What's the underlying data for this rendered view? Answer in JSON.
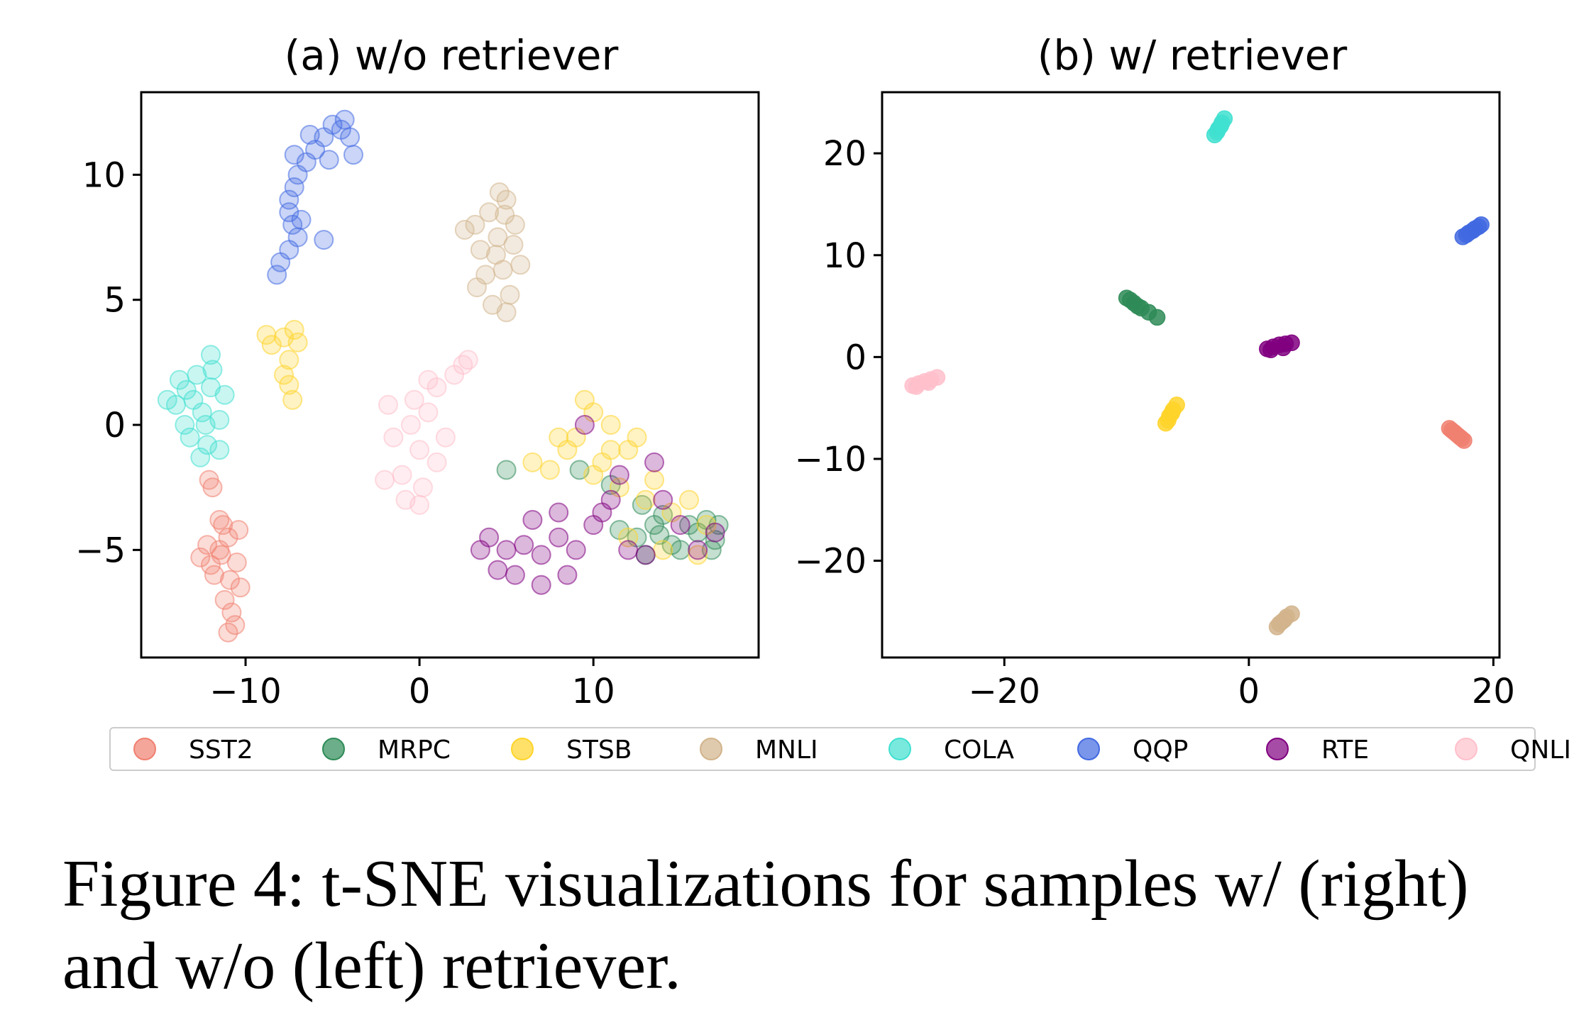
{
  "figure": {
    "caption": "Figure 4: t-SNE visualizations for samples w/ (right) and w/o (left) retriever."
  },
  "legend": [
    {
      "label": "SST2",
      "color": "#f08070"
    },
    {
      "label": "MRPC",
      "color": "#2e8b57"
    },
    {
      "label": "STSB",
      "color": "#ffd42a"
    },
    {
      "label": "MNLI",
      "color": "#d2b48c"
    },
    {
      "label": "COLA",
      "color": "#40e0d0"
    },
    {
      "label": "QQP",
      "color": "#4169e1"
    },
    {
      "label": "RTE",
      "color": "#800080"
    },
    {
      "label": "QNLI",
      "color": "#ffc0cb"
    }
  ],
  "chart_data": [
    {
      "type": "scatter",
      "title": "(a) w/o retriever",
      "xlim": [
        -16,
        19.5
      ],
      "ylim": [
        -9.3,
        13.3
      ],
      "xticks": [
        {
          "value": -10,
          "label": "−10"
        },
        {
          "value": 0,
          "label": "0"
        },
        {
          "value": 10,
          "label": "10"
        }
      ],
      "yticks": [
        {
          "value": -5,
          "label": "−5"
        },
        {
          "value": 0,
          "label": "0"
        },
        {
          "value": 5,
          "label": "5"
        },
        {
          "value": 10,
          "label": "10"
        }
      ],
      "series": [
        {
          "name": "SST2",
          "points": [
            [
              -11.5,
              -5.0
            ],
            [
              -11.0,
              -4.5
            ],
            [
              -10.5,
              -5.5
            ],
            [
              -11.8,
              -6.0
            ],
            [
              -11.2,
              -7.0
            ],
            [
              -10.8,
              -7.5
            ],
            [
              -10.3,
              -6.5
            ],
            [
              -12.2,
              -4.8
            ],
            [
              -11.5,
              -3.8
            ],
            [
              -10.6,
              -8.0
            ],
            [
              -11.0,
              -8.3
            ],
            [
              -12.0,
              -5.6
            ],
            [
              -10.4,
              -4.2
            ],
            [
              -11.4,
              -5.2
            ],
            [
              -10.9,
              -6.2
            ],
            [
              -12.6,
              -5.3
            ],
            [
              -11.9,
              -2.5
            ],
            [
              -12.1,
              -2.2
            ],
            [
              -11.3,
              -4.0
            ]
          ]
        },
        {
          "name": "MRPC",
          "points": [
            [
              12.5,
              -4.5
            ],
            [
              13.5,
              -4.0
            ],
            [
              14.5,
              -4.8
            ],
            [
              15.0,
              -5.0
            ],
            [
              16.0,
              -4.3
            ],
            [
              16.5,
              -3.8
            ],
            [
              17.0,
              -4.6
            ],
            [
              14.0,
              -3.6
            ],
            [
              15.5,
              -4.0
            ],
            [
              12.8,
              -3.2
            ],
            [
              11.5,
              -4.2
            ],
            [
              13.0,
              -5.2
            ],
            [
              16.8,
              -5.0
            ],
            [
              5.0,
              -1.8
            ],
            [
              11.0,
              -2.4
            ],
            [
              9.2,
              -1.8
            ],
            [
              13.8,
              -4.4
            ],
            [
              17.2,
              -4.0
            ]
          ]
        },
        {
          "name": "STSB",
          "points": [
            [
              -7.8,
              3.5
            ],
            [
              -8.5,
              3.2
            ],
            [
              -7.2,
              3.8
            ],
            [
              -7.5,
              2.6
            ],
            [
              -7.8,
              2.0
            ],
            [
              -7.5,
              1.6
            ],
            [
              -7.3,
              1.0
            ],
            [
              -8.8,
              3.6
            ],
            [
              -7.0,
              3.3
            ],
            [
              9.0,
              -0.5
            ],
            [
              10.0,
              0.5
            ],
            [
              11.0,
              0.0
            ],
            [
              12.0,
              -1.0
            ],
            [
              12.5,
              -0.5
            ],
            [
              10.5,
              -1.5
            ],
            [
              11.5,
              -2.5
            ],
            [
              8.5,
              -1.0
            ],
            [
              7.5,
              -1.8
            ],
            [
              13.5,
              -2.2
            ],
            [
              14.5,
              -3.5
            ],
            [
              15.5,
              -3.0
            ],
            [
              16.5,
              -4.0
            ],
            [
              13.0,
              -3.0
            ],
            [
              10.0,
              -2.0
            ],
            [
              11.0,
              -1.0
            ],
            [
              9.5,
              1.0
            ],
            [
              12.0,
              -4.5
            ],
            [
              14.0,
              -5.0
            ],
            [
              16.0,
              -5.2
            ],
            [
              6.5,
              -1.5
            ],
            [
              8.0,
              -0.5
            ]
          ]
        },
        {
          "name": "MNLI",
          "points": [
            [
              4.5,
              7.5
            ],
            [
              4.0,
              8.5
            ],
            [
              5.0,
              9.0
            ],
            [
              3.5,
              7.0
            ],
            [
              4.8,
              6.2
            ],
            [
              5.2,
              5.2
            ],
            [
              4.2,
              4.8
            ],
            [
              3.2,
              8.0
            ],
            [
              5.5,
              8.0
            ],
            [
              4.6,
              9.3
            ],
            [
              3.8,
              6.0
            ],
            [
              5.0,
              4.5
            ],
            [
              2.6,
              7.8
            ],
            [
              3.3,
              5.5
            ],
            [
              4.4,
              6.8
            ],
            [
              5.4,
              7.2
            ],
            [
              5.8,
              6.4
            ],
            [
              4.9,
              8.4
            ]
          ]
        },
        {
          "name": "COLA",
          "points": [
            [
              -13.0,
              1.0
            ],
            [
              -12.5,
              0.5
            ],
            [
              -12.0,
              1.5
            ],
            [
              -13.5,
              0.0
            ],
            [
              -12.8,
              2.0
            ],
            [
              -11.5,
              0.2
            ],
            [
              -12.2,
              -0.8
            ],
            [
              -13.2,
              -0.5
            ],
            [
              -14.0,
              0.8
            ],
            [
              -12.0,
              2.8
            ],
            [
              -11.2,
              1.2
            ],
            [
              -12.6,
              -1.3
            ],
            [
              -13.8,
              1.8
            ],
            [
              -11.5,
              -1.0
            ],
            [
              -12.3,
              0.0
            ],
            [
              -13.4,
              1.4
            ],
            [
              -11.9,
              2.2
            ],
            [
              -14.5,
              1.0
            ]
          ]
        },
        {
          "name": "QQP",
          "points": [
            [
              -5.5,
              11.5
            ],
            [
              -5.0,
              12.0
            ],
            [
              -4.5,
              11.8
            ],
            [
              -6.0,
              11.0
            ],
            [
              -6.5,
              10.5
            ],
            [
              -7.0,
              10.0
            ],
            [
              -7.2,
              9.5
            ],
            [
              -7.5,
              9.0
            ],
            [
              -7.5,
              8.5
            ],
            [
              -7.3,
              8.0
            ],
            [
              -7.0,
              7.5
            ],
            [
              -7.5,
              7.0
            ],
            [
              -8.0,
              6.5
            ],
            [
              -8.2,
              6.0
            ],
            [
              -4.0,
              11.5
            ],
            [
              -3.8,
              10.8
            ],
            [
              -6.3,
              11.6
            ],
            [
              -5.2,
              10.6
            ],
            [
              -6.8,
              8.2
            ],
            [
              -5.5,
              7.4
            ],
            [
              -7.2,
              10.8
            ],
            [
              -4.3,
              12.2
            ]
          ]
        },
        {
          "name": "RTE",
          "points": [
            [
              4.0,
              -4.5
            ],
            [
              5.0,
              -5.0
            ],
            [
              6.0,
              -4.8
            ],
            [
              7.0,
              -5.2
            ],
            [
              8.0,
              -4.5
            ],
            [
              9.0,
              -5.0
            ],
            [
              4.5,
              -5.8
            ],
            [
              5.5,
              -6.0
            ],
            [
              7.0,
              -6.4
            ],
            [
              8.5,
              -6.0
            ],
            [
              3.5,
              -5.0
            ],
            [
              6.5,
              -3.8
            ],
            [
              8.0,
              -3.5
            ],
            [
              10.0,
              -4.0
            ],
            [
              10.5,
              -3.5
            ],
            [
              11.0,
              -3.0
            ],
            [
              9.5,
              0.0
            ],
            [
              11.5,
              -2.0
            ],
            [
              13.5,
              -1.5
            ],
            [
              14.0,
              -3.0
            ],
            [
              15.0,
              -4.0
            ],
            [
              16.0,
              -5.0
            ],
            [
              17.0,
              -4.3
            ],
            [
              12.0,
              -5.0
            ],
            [
              13.0,
              -5.2
            ]
          ]
        },
        {
          "name": "QNLI",
          "points": [
            [
              -0.5,
              0.0
            ],
            [
              0.0,
              -1.0
            ],
            [
              -1.0,
              -2.0
            ],
            [
              0.5,
              0.5
            ],
            [
              -0.3,
              1.0
            ],
            [
              0.2,
              -2.5
            ],
            [
              -1.5,
              -0.5
            ],
            [
              1.0,
              -1.5
            ],
            [
              -0.8,
              -3.0
            ],
            [
              0.0,
              -3.2
            ],
            [
              0.5,
              1.8
            ],
            [
              -2.0,
              -2.2
            ],
            [
              1.0,
              1.5
            ],
            [
              2.0,
              2.0
            ],
            [
              2.5,
              2.4
            ],
            [
              2.8,
              2.6
            ],
            [
              -1.8,
              0.8
            ],
            [
              1.5,
              -0.5
            ]
          ]
        }
      ]
    },
    {
      "type": "scatter",
      "title": "(b) w/ retriever",
      "xlim": [
        -30,
        20.5
      ],
      "ylim": [
        -29.5,
        26
      ],
      "xticks": [
        {
          "value": -20,
          "label": "−20"
        },
        {
          "value": 0,
          "label": "0"
        },
        {
          "value": 20,
          "label": "20"
        }
      ],
      "yticks": [
        {
          "value": -20,
          "label": "−20"
        },
        {
          "value": -10,
          "label": "−10"
        },
        {
          "value": 0,
          "label": "0"
        },
        {
          "value": 10,
          "label": "10"
        },
        {
          "value": 20,
          "label": "20"
        }
      ],
      "series": [
        {
          "name": "SST2",
          "points": [
            [
              16.4,
              -7.0
            ],
            [
              16.8,
              -7.4
            ],
            [
              17.2,
              -7.8
            ],
            [
              17.6,
              -8.2
            ],
            [
              16.6,
              -7.2
            ],
            [
              17.0,
              -7.6
            ],
            [
              17.4,
              -8.0
            ]
          ]
        },
        {
          "name": "MRPC",
          "points": [
            [
              -10.0,
              5.8
            ],
            [
              -9.4,
              5.3
            ],
            [
              -8.8,
              4.8
            ],
            [
              -8.2,
              4.4
            ],
            [
              -9.7,
              5.6
            ],
            [
              -9.1,
              5.0
            ],
            [
              -7.5,
              3.9
            ]
          ]
        },
        {
          "name": "STSB",
          "points": [
            [
              -6.8,
              -6.5
            ],
            [
              -6.5,
              -5.8
            ],
            [
              -6.2,
              -5.2
            ],
            [
              -5.9,
              -4.7
            ],
            [
              -6.6,
              -6.2
            ],
            [
              -6.3,
              -5.5
            ]
          ]
        },
        {
          "name": "MNLI",
          "points": [
            [
              2.3,
              -26.5
            ],
            [
              2.7,
              -26.0
            ],
            [
              3.1,
              -25.5
            ],
            [
              3.5,
              -25.2
            ],
            [
              2.5,
              -26.2
            ],
            [
              2.9,
              -25.8
            ]
          ]
        },
        {
          "name": "COLA",
          "points": [
            [
              -2.8,
              21.8
            ],
            [
              -2.5,
              22.4
            ],
            [
              -2.2,
              23.0
            ],
            [
              -2.0,
              23.4
            ],
            [
              -2.6,
              22.1
            ],
            [
              -2.3,
              22.7
            ]
          ]
        },
        {
          "name": "QQP",
          "points": [
            [
              17.5,
              11.8
            ],
            [
              18.0,
              12.2
            ],
            [
              18.5,
              12.6
            ],
            [
              19.0,
              13.0
            ],
            [
              17.8,
              12.0
            ],
            [
              18.3,
              12.4
            ],
            [
              18.8,
              12.8
            ]
          ]
        },
        {
          "name": "RTE",
          "points": [
            [
              1.5,
              0.8
            ],
            [
              2.0,
              1.0
            ],
            [
              2.5,
              1.2
            ],
            [
              3.0,
              1.3
            ],
            [
              3.5,
              1.4
            ],
            [
              1.8,
              0.7
            ],
            [
              2.8,
              0.9
            ]
          ]
        },
        {
          "name": "QNLI",
          "points": [
            [
              -27.5,
              -2.8
            ],
            [
              -27.0,
              -2.6
            ],
            [
              -26.5,
              -2.4
            ],
            [
              -26.0,
              -2.2
            ],
            [
              -25.5,
              -2.0
            ],
            [
              -27.2,
              -2.9
            ],
            [
              -26.2,
              -2.5
            ]
          ]
        }
      ]
    }
  ]
}
